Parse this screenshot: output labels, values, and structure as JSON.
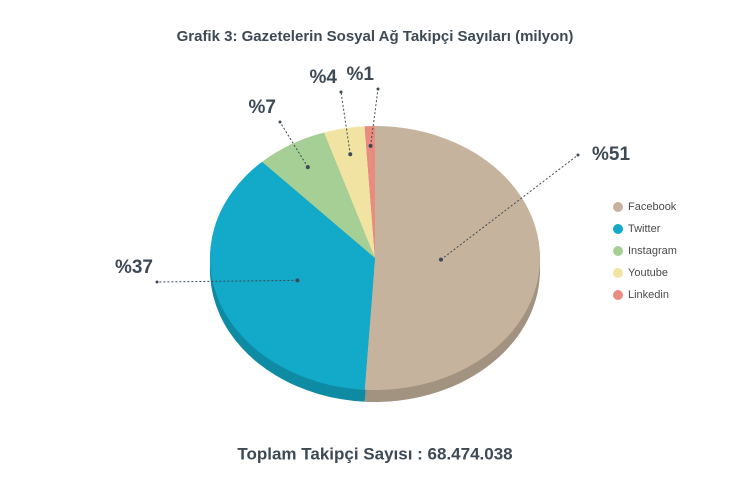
{
  "chart_data": {
    "type": "pie",
    "title": "Grafik 3: Gazetelerin Sosyal Ağ Takipçi Sayıları (milyon)",
    "categories": [
      "Facebook",
      "Twitter",
      "Instagram",
      "Youtube",
      "Linkedin"
    ],
    "values": [
      51,
      37,
      7,
      4,
      1
    ],
    "value_labels": [
      "%51",
      "%37",
      "%7",
      "%4",
      "%1"
    ],
    "colors": [
      "#c6b39d",
      "#12aac8",
      "#a6cf95",
      "#f1e4a2",
      "#ea8b80"
    ],
    "legend": "right",
    "footer": "Toplam Takipçi Sayısı : 68.474.038"
  }
}
